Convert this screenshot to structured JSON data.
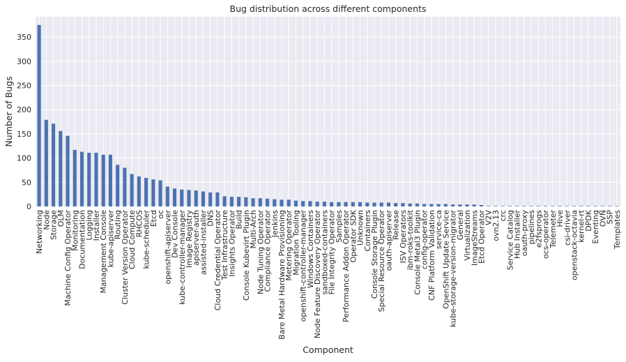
{
  "chart_data": {
    "type": "bar",
    "title": "Bug distribution across different components",
    "xlabel": "Component",
    "ylabel": "Number of Bugs",
    "ylim": [
      0,
      392
    ],
    "yticks": [
      0,
      50,
      100,
      150,
      200,
      250,
      300,
      350
    ],
    "grid": true,
    "legend": "none",
    "bar_color": "#4c72b0",
    "background_color": "#eaeaf2",
    "categories": [
      "Networking",
      "Node",
      "Storage",
      "OLM",
      "Machine Config Operator",
      "Monitoring",
      "Documentation",
      "Logging",
      "Installer",
      "Management Console",
      "kube-apiserver",
      "Routing",
      "Cluster Version Operator",
      "Cloud Compute",
      "RHCOS",
      "kube-scheduler",
      "Etcd",
      "oc",
      "openshift-apiserver",
      "Dev Console",
      "kube-controller-manager",
      "Image Registry",
      "apiserver-auth",
      "assisted-installer",
      "DNS",
      "Cloud Credential Operator",
      "Test Infrastructure",
      "Insights Operator",
      "Build",
      "Console Kubevirt Plugin",
      "Multi-Arch",
      "Node Tuning Operator",
      "Compliance Operator",
      "Jenkins",
      "Bare Metal Hardware Provisioning",
      "Metering Operator",
      "Migration Tooling",
      "openshift-controller-manager",
      "Windows Containers",
      "Node Feature Discovery Operator",
      "sandboxed-containers",
      "File Integrity Operator",
      "Samples",
      "Performance Addon Operator",
      "Operator SDK",
      "Unknown",
      "Containers",
      "Console Storage Plugin",
      "Special Resource Operator",
      "oauth-apiserver",
      "Release",
      "ISV Operators",
      "ibm-roks-toolkit",
      "Console Metal3 Plugin",
      "config-operator",
      "CNF Platform Validation",
      "service-ca",
      "OpenShift Update Service",
      "kube-storage-version-migrator",
      "General",
      "Virtualization",
      "ImageStreams",
      "Etcd Operator",
      "V2V",
      "ovn2.13",
      "crc",
      "Service Catalog",
      "Hub Installer",
      "oauth-proxy",
      "pipelines",
      "e2fsprogs",
      "ocs-operator",
      "Telemeter",
      "Hive",
      "csi-driver",
      "openstack-octavia",
      "kernel-rt",
      "DPDK",
      "Eventing",
      "OVN",
      "SSP",
      "Templates"
    ],
    "values": [
      375,
      179,
      171,
      156,
      146,
      117,
      113,
      111,
      111,
      107,
      107,
      86,
      80,
      67,
      62,
      59,
      56,
      54,
      41,
      37,
      35,
      34,
      33,
      31,
      29,
      29,
      21,
      20,
      20,
      19,
      17,
      17,
      16,
      15,
      14,
      14,
      12,
      11,
      11,
      10,
      10,
      9,
      9,
      9,
      9,
      9,
      8,
      8,
      8,
      8,
      7,
      7,
      6,
      6,
      5,
      5,
      5,
      5,
      4,
      4,
      4,
      4,
      3,
      1,
      1,
      1,
      1,
      1,
      1,
      1,
      1,
      1,
      1,
      1,
      1,
      1,
      1,
      1,
      1,
      1,
      1,
      1
    ]
  }
}
